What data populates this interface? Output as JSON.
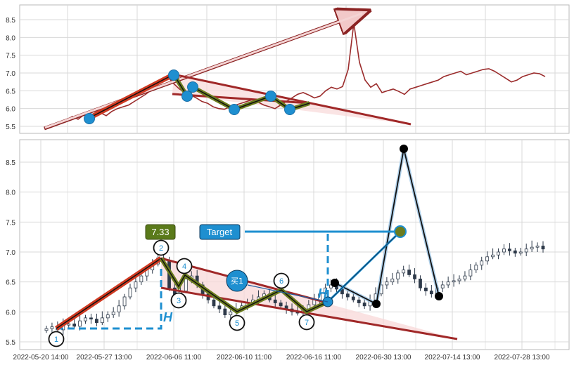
{
  "chart_data": [
    {
      "type": "line",
      "panel": "overview",
      "ylim": [
        5.35,
        8.9
      ],
      "yticks": [
        "5.5",
        "6.0",
        "6.5",
        "7.0",
        "7.5",
        "8.0",
        "8.5"
      ],
      "grid": true,
      "series": [
        {
          "values": [
            5.45,
            5.5,
            5.55,
            5.6,
            5.68,
            5.78,
            5.7,
            5.82,
            5.75,
            5.85,
            5.88,
            5.8,
            5.92,
            6.0,
            6.05,
            6.1,
            6.2,
            6.3,
            6.4,
            6.52,
            6.65,
            6.78,
            6.88,
            6.7,
            6.55,
            6.45,
            6.38,
            6.3,
            6.2,
            6.15,
            6.05,
            6.0,
            5.98,
            6.05,
            6.1,
            6.15,
            6.2,
            6.25,
            6.18,
            6.1,
            6.05,
            6.0,
            6.1,
            6.2,
            6.3,
            6.4,
            6.45,
            6.38,
            6.3,
            6.35,
            6.5,
            6.6,
            6.55,
            6.62,
            7.1,
            8.4,
            7.3,
            6.8,
            6.6,
            6.7,
            6.45,
            6.5,
            6.55,
            6.48,
            6.4,
            6.55,
            6.6,
            6.65,
            6.7,
            6.75,
            6.8,
            6.9,
            6.95,
            7.0,
            7.05,
            6.95,
            7.0,
            7.05,
            7.1,
            7.12,
            7.05,
            6.95,
            6.85,
            6.75,
            6.8,
            6.9,
            6.95,
            7.0,
            6.98,
            6.9
          ]
        }
      ],
      "pattern_points": [
        {
          "label": "1",
          "i": 4,
          "y": 5.7
        },
        {
          "label": "2",
          "i": 22,
          "y": 6.9
        },
        {
          "label": "3",
          "i": 25,
          "y": 6.35
        },
        {
          "label": "4",
          "i": 26,
          "y": 6.6
        },
        {
          "label": "5",
          "i": 33,
          "y": 5.95
        },
        {
          "label": "6",
          "i": 40,
          "y": 6.33
        },
        {
          "label": "7",
          "i": 44,
          "y": 5.95
        }
      ]
    },
    {
      "type": "candlestick",
      "panel": "detail",
      "ylim": [
        5.4,
        8.9
      ],
      "yticks": [
        "5.5",
        "6.0",
        "6.5",
        "7.0",
        "7.5",
        "8.0",
        "8.5"
      ],
      "xtick_labels": [
        "2022-05-20 14:00",
        "2022-05-27 13:00",
        "2022-06-06 11:00",
        "2022-06-10 11:00",
        "2022-06-16 11:00",
        "2022-06-30 13:00",
        "2022-07-14 13:00",
        "2022-07-28 13:00"
      ],
      "grid": true,
      "close_values": [
        5.72,
        5.75,
        5.7,
        5.78,
        5.8,
        5.76,
        5.85,
        5.9,
        5.88,
        5.82,
        5.9,
        5.95,
        6.0,
        6.1,
        6.25,
        6.4,
        6.5,
        6.6,
        6.7,
        6.8,
        6.9,
        6.85,
        6.4,
        6.2,
        6.35,
        6.55,
        6.6,
        6.45,
        6.3,
        6.2,
        6.1,
        6.05,
        5.95,
        6.0,
        6.05,
        6.1,
        6.15,
        6.2,
        6.25,
        6.3,
        6.2,
        6.15,
        6.1,
        6.05,
        6.0,
        5.98,
        6.05,
        6.12,
        6.2,
        6.3,
        6.4,
        6.45,
        6.38,
        6.3,
        6.25,
        6.2,
        6.15,
        6.1,
        6.2,
        6.3,
        6.45,
        6.5,
        6.55,
        6.65,
        6.7,
        6.62,
        6.55,
        6.4,
        6.35,
        6.3,
        6.4,
        6.45,
        6.5,
        6.52,
        6.55,
        6.6,
        6.7,
        6.78,
        6.85,
        6.92,
        6.95,
        7.0,
        7.05,
        7.02,
        6.98,
        7.0,
        7.05,
        7.08,
        7.1,
        7.05
      ],
      "labels": {
        "top_value": "7.33",
        "target": "Target",
        "buy": "买1",
        "h_mark": "H"
      },
      "pattern_points": [
        {
          "label": "1",
          "x": 5,
          "y": 5.52
        },
        {
          "label": "2",
          "x": 22,
          "y": 7.05
        },
        {
          "label": "3",
          "x": 25.5,
          "y": 6.18
        },
        {
          "label": "4",
          "x": 27,
          "y": 6.75
        },
        {
          "label": "5",
          "x": 33,
          "y": 5.95
        },
        {
          "label": "6",
          "x": 40,
          "y": 6.5
        },
        {
          "label": "7",
          "x": 43,
          "y": 5.95
        }
      ],
      "projection_points": [
        {
          "x": 48,
          "y": 6.5
        },
        {
          "x": 54,
          "y": 6.13
        },
        {
          "x": 56.5,
          "y": 8.75
        },
        {
          "x": 59.5,
          "y": 6.25
        }
      ],
      "target_price": 7.33,
      "breakout_point": {
        "x": 46,
        "y": 6.13
      },
      "colors": {
        "accent_blue": "#1e8fd0",
        "trend_red": "#c0392b",
        "dark_red": "#8b2323",
        "zigzag_olive": "#6b7c1e",
        "label_green_bg": "#5a7a1a",
        "candle_dark": "#2e3a4a"
      }
    }
  ]
}
